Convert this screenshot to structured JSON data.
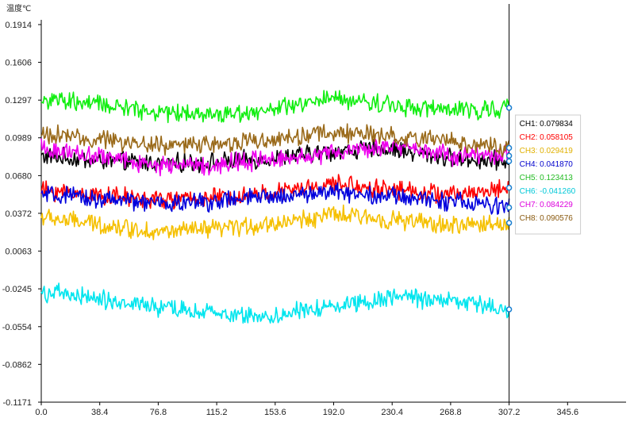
{
  "chart_data": {
    "type": "line",
    "unit_label": "温度℃",
    "xlim": [
      0,
      384
    ],
    "ylim": [
      -0.1171,
      0.1914
    ],
    "x_ticks": [
      0.0,
      38.4,
      76.8,
      115.2,
      153.6,
      192.0,
      230.4,
      268.8,
      307.2,
      345.6
    ],
    "x_tick_labels": [
      "0.0",
      "38.4",
      "76.8",
      "115.2",
      "153.6",
      "192.0",
      "230.4",
      "268.8",
      "307.2",
      "345.6"
    ],
    "y_ticks": [
      0.1914,
      0.1606,
      0.1297,
      0.0989,
      0.068,
      0.0372,
      0.0063,
      -0.0245,
      -0.0554,
      -0.0862,
      -0.1171
    ],
    "y_tick_labels": [
      "0.1914",
      "0.1606",
      "0.1297",
      "0.0989",
      "0.0680",
      "0.0372",
      "0.0063",
      "-0.0245",
      "-0.0554",
      "-0.0862",
      "-0.1171"
    ],
    "cursor_x": 307.2,
    "grid": false,
    "legend_position": "right of cursor",
    "series": [
      {
        "name": "CH1",
        "readout": "CH1: 0.079834",
        "color": "#000000",
        "text_color": "#000000",
        "x": [
          0,
          38.4,
          76.8,
          115.2,
          153.6,
          192.0,
          230.4,
          268.8,
          307.2
        ],
        "values": [
          0.084,
          0.08,
          0.078,
          0.079,
          0.082,
          0.088,
          0.09,
          0.082,
          0.0798
        ]
      },
      {
        "name": "CH2",
        "readout": "CH2: 0.058105",
        "color": "#ff0000",
        "text_color": "#ff0000",
        "x": [
          0,
          38.4,
          76.8,
          115.2,
          153.6,
          192.0,
          230.4,
          268.8,
          307.2
        ],
        "values": [
          0.056,
          0.052,
          0.048,
          0.05,
          0.054,
          0.061,
          0.057,
          0.052,
          0.0581
        ]
      },
      {
        "name": "CH3",
        "readout": "CH3: 0.029419",
        "color": "#f5c000",
        "text_color": "#e0b000",
        "x": [
          0,
          38.4,
          76.8,
          115.2,
          153.6,
          192.0,
          230.4,
          268.8,
          307.2
        ],
        "values": [
          0.034,
          0.028,
          0.022,
          0.024,
          0.029,
          0.036,
          0.032,
          0.027,
          0.0294
        ]
      },
      {
        "name": "CH4",
        "readout": "CH4: 0.041870",
        "color": "#0000dd",
        "text_color": "#0000cc",
        "x": [
          0,
          38.4,
          76.8,
          115.2,
          153.6,
          192.0,
          230.4,
          268.8,
          307.2
        ],
        "values": [
          0.052,
          0.049,
          0.045,
          0.047,
          0.051,
          0.055,
          0.051,
          0.047,
          0.0419
        ]
      },
      {
        "name": "CH5",
        "readout": "CH5: 0.123413",
        "color": "#11ee11",
        "text_color": "#22bb22",
        "x": [
          0,
          38.4,
          76.8,
          115.2,
          153.6,
          192.0,
          230.4,
          268.8,
          307.2
        ],
        "values": [
          0.13,
          0.126,
          0.12,
          0.118,
          0.122,
          0.131,
          0.126,
          0.121,
          0.1234
        ]
      },
      {
        "name": "CH6",
        "readout": "CH6: -0.041260",
        "color": "#00e5ee",
        "text_color": "#00c8d8",
        "x": [
          0,
          38.4,
          76.8,
          115.2,
          153.6,
          192.0,
          230.4,
          268.8,
          307.2
        ],
        "values": [
          -0.027,
          -0.033,
          -0.04,
          -0.045,
          -0.047,
          -0.038,
          -0.031,
          -0.034,
          -0.0413
        ]
      },
      {
        "name": "CH7",
        "readout": "CH7: 0.084229",
        "color": "#ee00ee",
        "text_color": "#dd00dd",
        "x": [
          0,
          38.4,
          76.8,
          115.2,
          153.6,
          192.0,
          230.4,
          268.8,
          307.2
        ],
        "values": [
          0.09,
          0.084,
          0.076,
          0.077,
          0.082,
          0.087,
          0.092,
          0.084,
          0.0842
        ]
      },
      {
        "name": "CH8",
        "readout": "CH8: 0.090576",
        "color": "#9a6a1a",
        "text_color": "#8a5a10",
        "x": [
          0,
          38.4,
          76.8,
          115.2,
          153.6,
          192.0,
          230.4,
          268.8,
          307.2
        ],
        "values": [
          0.102,
          0.097,
          0.093,
          0.094,
          0.098,
          0.103,
          0.101,
          0.096,
          0.0906
        ]
      }
    ]
  }
}
